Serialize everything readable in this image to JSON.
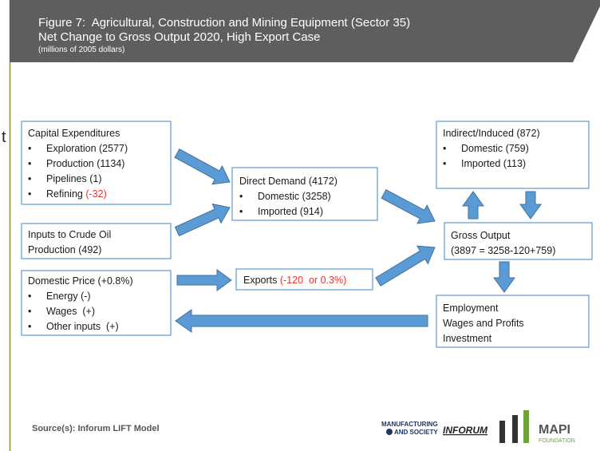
{
  "header": {
    "title_line1": "Figure 7:  Agricultural, Construction and Mining Equipment (Sector 35)",
    "title_line2": "Net Change to Gross Output 2020, High Export Case",
    "units": "(millions of 2005 dollars)"
  },
  "stray_text": "t",
  "boxes": [
    {
      "lines": [
        {
          "bullet": false,
          "segments": [
            {
              "text": "Capital Expenditures"
            }
          ]
        },
        {
          "bullet": true,
          "segments": [
            {
              "text": "Exploration (2577)"
            }
          ]
        },
        {
          "bullet": true,
          "segments": [
            {
              "text": "Production (1134)"
            }
          ]
        },
        {
          "bullet": true,
          "segments": [
            {
              "text": "Pipelines (1)"
            }
          ]
        },
        {
          "bullet": true,
          "segments": [
            {
              "text": "Refining "
            },
            {
              "text": "(-32)",
              "color": "#e8352b"
            }
          ]
        }
      ]
    },
    {
      "lines": [
        {
          "bullet": false,
          "segments": [
            {
              "text": "Inputs to Crude Oil"
            }
          ]
        },
        {
          "bullet": false,
          "segments": [
            {
              "text": "Production (492)"
            }
          ]
        }
      ]
    },
    {
      "lines": [
        {
          "bullet": false,
          "segments": [
            {
              "text": "Domestic Price (+0.8%)"
            }
          ]
        },
        {
          "bullet": true,
          "segments": [
            {
              "text": "Energy (-)"
            }
          ]
        },
        {
          "bullet": true,
          "segments": [
            {
              "text": "Wages  (+)"
            }
          ]
        },
        {
          "bullet": true,
          "segments": [
            {
              "text": "Other inputs  (+)"
            }
          ]
        }
      ]
    },
    {
      "lines": [
        {
          "bullet": false,
          "segments": [
            {
              "text": "Direct Demand (4172)"
            }
          ]
        },
        {
          "bullet": true,
          "segments": [
            {
              "text": "Domestic (3258)"
            }
          ]
        },
        {
          "bullet": true,
          "segments": [
            {
              "text": "Imported (914)"
            }
          ]
        }
      ]
    },
    {
      "lines": [
        {
          "bullet": false,
          "segments": [
            {
              "text": "Exports "
            },
            {
              "text": "(-120  or 0.3%)",
              "color": "#e8352b"
            }
          ]
        }
      ]
    },
    {
      "lines": [
        {
          "bullet": false,
          "segments": [
            {
              "text": "Indirect/Induced (872)"
            }
          ]
        },
        {
          "bullet": true,
          "segments": [
            {
              "text": "Domestic (759)"
            }
          ]
        },
        {
          "bullet": true,
          "segments": [
            {
              "text": "Imported (113)"
            }
          ]
        }
      ]
    },
    {
      "lines": [
        {
          "bullet": false,
          "segments": [
            {
              "text": "Gross Output"
            }
          ]
        },
        {
          "bullet": false,
          "segments": [
            {
              "text": "(3897 = 3258-120+759)"
            }
          ]
        }
      ]
    },
    {
      "lines": [
        {
          "bullet": false,
          "segments": [
            {
              "text": "Employment"
            }
          ]
        },
        {
          "bullet": false,
          "segments": [
            {
              "text": "Wages and Profits"
            }
          ]
        },
        {
          "bullet": false,
          "segments": [
            {
              "text": "Investment"
            }
          ]
        }
      ]
    }
  ],
  "footer": {
    "source": "Source(s): Inforum LIFT Model",
    "logos": [
      "MANUFACTURING",
      "AND SOCIETY",
      "INFORUM",
      "MAPI",
      "FOUNDATION"
    ]
  }
}
